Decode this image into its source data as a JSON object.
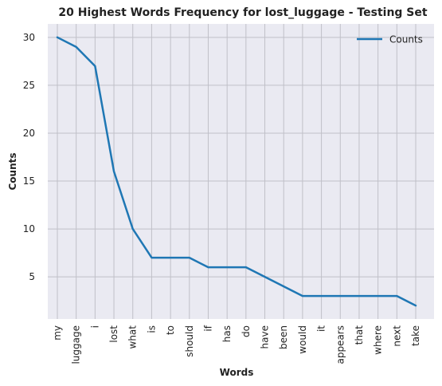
{
  "chart_data": {
    "type": "line",
    "title": "20 Highest Words Frequency for lost_luggage - Testing Set",
    "xlabel": "Words",
    "ylabel": "Counts",
    "categories": [
      "my",
      "luggage",
      "i",
      "lost",
      "what",
      "is",
      "to",
      "should",
      "if",
      "has",
      "do",
      "have",
      "been",
      "would",
      "it",
      "appears",
      "that",
      "where",
      "next",
      "take"
    ],
    "series": [
      {
        "name": "Counts",
        "values": [
          30,
          29,
          27,
          16,
          10,
          7,
          7,
          7,
          6,
          6,
          6,
          5,
          4,
          3,
          3,
          3,
          3,
          3,
          3,
          2
        ]
      }
    ],
    "yticks": [
      5,
      10,
      15,
      20,
      25,
      30
    ],
    "ylim": [
      0.6,
      31.4
    ],
    "grid": true,
    "legend_position": "top-right",
    "colors": {
      "line": "#1f77b4",
      "plot_background": "#eaeaf2",
      "grid": "#c0c0c8"
    }
  }
}
